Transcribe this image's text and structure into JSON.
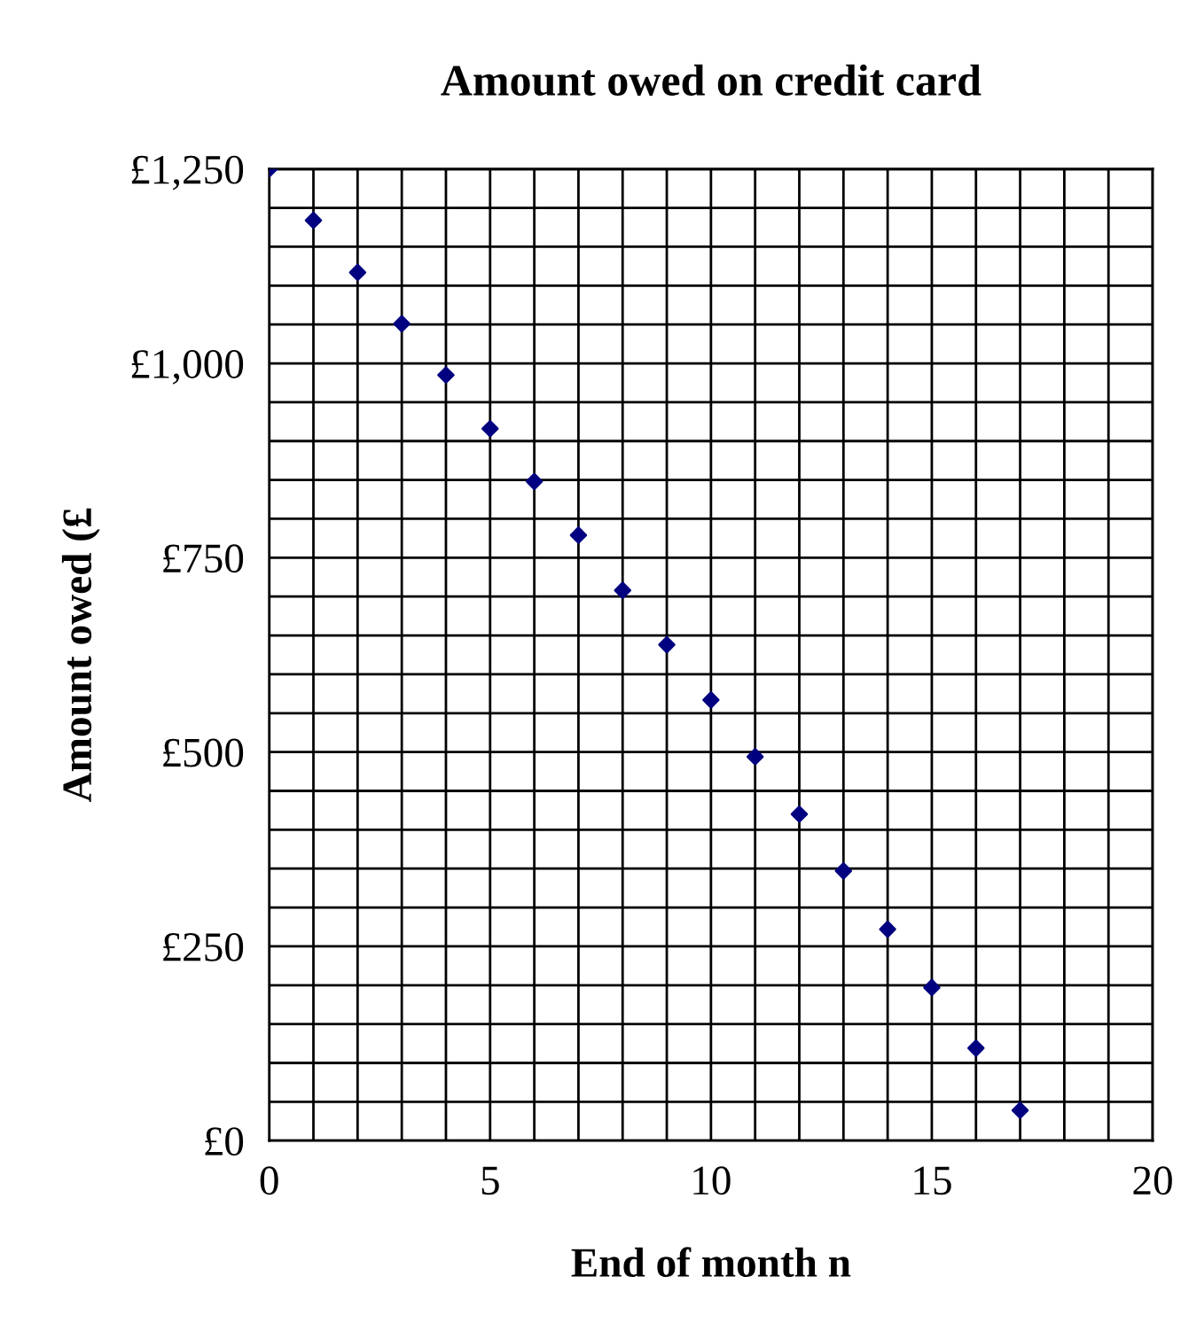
{
  "chart_data": {
    "type": "scatter",
    "title": "Amount owed on credit card",
    "xlabel": "End of month n",
    "ylabel": "Amount owed (£",
    "x": [
      0,
      1,
      2,
      3,
      4,
      5,
      6,
      7,
      8,
      9,
      10,
      11,
      12,
      13,
      14,
      15,
      16,
      17
    ],
    "series": [
      {
        "color": "#000080",
        "values": [
          1250,
          1184,
          1117,
          1051,
          985,
          916,
          848,
          779,
          708,
          638,
          567,
          494,
          420,
          347,
          272,
          197,
          119,
          39
        ]
      }
    ],
    "marker": "diamond",
    "grid": true,
    "legend": false,
    "xlim": [
      0,
      20
    ],
    "ylim": [
      0,
      1250
    ],
    "xticks": [
      0,
      {
        "value": 1,
        "label": null
      },
      {
        "value": 2,
        "label": null
      },
      {
        "value": 3,
        "label": null
      },
      {
        "value": 4,
        "label": null
      },
      5,
      {
        "value": 6,
        "label": null
      },
      {
        "value": 7,
        "label": null
      },
      {
        "value": 8,
        "label": null
      },
      {
        "value": 9,
        "label": null
      },
      10,
      {
        "value": 11,
        "label": null
      },
      {
        "value": 12,
        "label": null
      },
      {
        "value": 13,
        "label": null
      },
      {
        "value": 14,
        "label": null
      },
      15,
      {
        "value": 16,
        "label": null
      },
      {
        "value": 17,
        "label": null
      },
      {
        "value": 18,
        "label": null
      },
      {
        "value": 19,
        "label": null
      },
      20
    ],
    "yticks": [
      {
        "value": 0,
        "label": "£0"
      },
      {
        "value": 50,
        "label": null
      },
      {
        "value": 100,
        "label": null
      },
      {
        "value": 150,
        "label": null
      },
      {
        "value": 200,
        "label": null
      },
      {
        "value": 250,
        "label": "£250"
      },
      {
        "value": 300,
        "label": null
      },
      {
        "value": 350,
        "label": null
      },
      {
        "value": 400,
        "label": null
      },
      {
        "value": 450,
        "label": null
      },
      {
        "value": 500,
        "label": "£500"
      },
      {
        "value": 550,
        "label": null
      },
      {
        "value": 600,
        "label": null
      },
      {
        "value": 650,
        "label": null
      },
      {
        "value": 700,
        "label": null
      },
      {
        "value": 750,
        "label": "£750"
      },
      {
        "value": 800,
        "label": null
      },
      {
        "value": 850,
        "label": null
      },
      {
        "value": 900,
        "label": null
      },
      {
        "value": 950,
        "label": null
      },
      {
        "value": 1000,
        "label": "£1,000"
      },
      {
        "value": 1050,
        "label": null
      },
      {
        "value": 1100,
        "label": null
      },
      {
        "value": 1150,
        "label": null
      },
      {
        "value": 1200,
        "label": null
      },
      {
        "value": 1250,
        "label": "£1,250"
      }
    ]
  }
}
